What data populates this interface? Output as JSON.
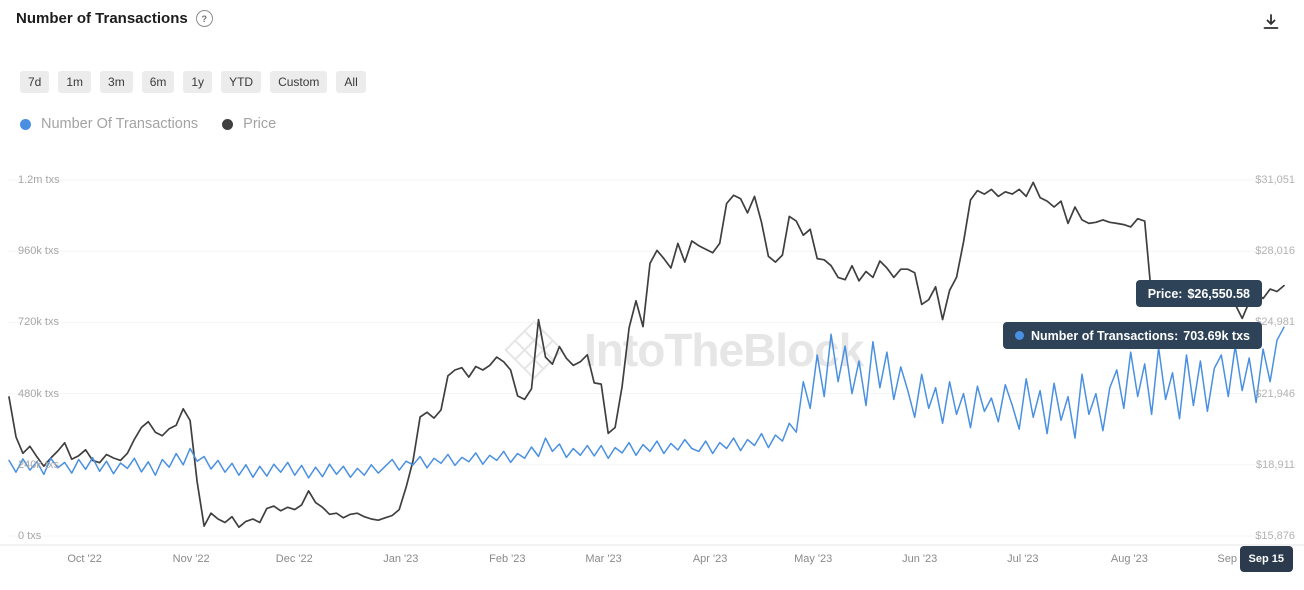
{
  "header": {
    "title": "Number of Transactions",
    "help_icon": "?",
    "download_icon": "download"
  },
  "toolbar": {
    "ranges": [
      "7d",
      "1m",
      "3m",
      "6m",
      "1y",
      "YTD",
      "Custom",
      "All"
    ]
  },
  "legend": [
    {
      "id": "transactions",
      "label": "Number Of Transactions",
      "color": "#4a90e2"
    },
    {
      "id": "price",
      "label": "Price",
      "color": "#3f3f3f"
    }
  ],
  "tooltips": {
    "price": {
      "label": "Price:",
      "value": "$26,550.58",
      "bg": "#2e4358"
    },
    "transactions": {
      "label": "Number of Transactions:",
      "value": "703.69k txs",
      "dot_color": "#4a90e2",
      "bg": "#2e4358"
    }
  },
  "axis_badge": {
    "label": "Sep 15",
    "bg": "#2b3a4d"
  },
  "watermark": {
    "text": "IntoTheBlock",
    "logo": "itb-diamond-logo"
  },
  "chart_data": {
    "type": "line",
    "title": "Number of Transactions",
    "grid": "horizontal",
    "legend_position": "top-left",
    "x_range_days": [
      0,
      371
    ],
    "x_ticks": [
      {
        "label": "Oct '22",
        "day": 22
      },
      {
        "label": "Nov '22",
        "day": 53
      },
      {
        "label": "Dec '22",
        "day": 83
      },
      {
        "label": "Jan '23",
        "day": 114
      },
      {
        "label": "Feb '23",
        "day": 145
      },
      {
        "label": "Mar '23",
        "day": 173
      },
      {
        "label": "Apr '23",
        "day": 204
      },
      {
        "label": "May '23",
        "day": 234
      },
      {
        "label": "Jun '23",
        "day": 265
      },
      {
        "label": "Jul '23",
        "day": 295
      },
      {
        "label": "Aug '23",
        "day": 326
      },
      {
        "label": "Sep '23",
        "day": 357
      }
    ],
    "left_axis": {
      "title": "transactions",
      "range_k": [
        0,
        1200
      ],
      "ticks": [
        {
          "label": "1.2m txs",
          "value_k": 1200
        },
        {
          "label": "960k txs",
          "value_k": 960
        },
        {
          "label": "720k txs",
          "value_k": 720
        },
        {
          "label": "480k txs",
          "value_k": 480
        },
        {
          "label": "240k txs",
          "value_k": 240
        },
        {
          "label": "0 txs",
          "value_k": 0
        }
      ]
    },
    "right_axis": {
      "title": "price_usd",
      "range": [
        15876,
        31051
      ],
      "ticks": [
        {
          "label": "$31,051",
          "value": 31051
        },
        {
          "label": "$28,016",
          "value": 28016
        },
        {
          "label": "$24,981",
          "value": 24981
        },
        {
          "label": "$21,946",
          "value": 21946
        },
        {
          "label": "$18,911",
          "value": 18911
        },
        {
          "label": "$15,876",
          "value": 15876
        }
      ]
    },
    "series": [
      {
        "name": "Number Of Transactions",
        "axis": "left",
        "unit": "k_txs",
        "color": "#4a90e2",
        "values": [
          255,
          215,
          260,
          222,
          250,
          208,
          262,
          230,
          248,
          212,
          258,
          225,
          264,
          218,
          252,
          210,
          246,
          228,
          262,
          216,
          250,
          205,
          258,
          232,
          278,
          240,
          295,
          252,
          268,
          226,
          255,
          215,
          245,
          205,
          240,
          198,
          235,
          202,
          242,
          215,
          248,
          205,
          238,
          196,
          232,
          200,
          242,
          208,
          235,
          198,
          228,
          205,
          240,
          212,
          235,
          258,
          222,
          252,
          240,
          268,
          230,
          262,
          245,
          275,
          238,
          265,
          250,
          280,
          242,
          272,
          255,
          285,
          248,
          278,
          262,
          300,
          268,
          330,
          285,
          310,
          265,
          295,
          272,
          305,
          270,
          305,
          262,
          298,
          280,
          315,
          272,
          308,
          285,
          320,
          278,
          312,
          290,
          325,
          295,
          285,
          320,
          278,
          315,
          295,
          330,
          288,
          325,
          305,
          345,
          298,
          340,
          320,
          380,
          350,
          520,
          430,
          610,
          470,
          680,
          520,
          640,
          480,
          590,
          440,
          655,
          500,
          620,
          460,
          570,
          490,
          400,
          545,
          430,
          500,
          380,
          520,
          410,
          480,
          365,
          505,
          420,
          465,
          385,
          510,
          440,
          360,
          530,
          400,
          490,
          345,
          515,
          390,
          470,
          330,
          545,
          410,
          480,
          355,
          500,
          560,
          430,
          620,
          470,
          580,
          410,
          635,
          460,
          550,
          395,
          610,
          440,
          590,
          420,
          565,
          610,
          470,
          640,
          490,
          600,
          450,
          630,
          520,
          660,
          703.69
        ]
      },
      {
        "name": "Price",
        "axis": "right",
        "unit": "usd",
        "color": "#3f3f3f",
        "values": [
          21800,
          20100,
          19400,
          19700,
          19250,
          18850,
          19200,
          19500,
          19850,
          19150,
          19300,
          19550,
          19100,
          19000,
          19350,
          19200,
          19100,
          19400,
          20000,
          20500,
          20750,
          20300,
          20150,
          20450,
          20600,
          21300,
          20800,
          18200,
          16300,
          16850,
          16600,
          16450,
          16700,
          16250,
          16500,
          16600,
          16450,
          17050,
          17150,
          16950,
          17100,
          17000,
          17200,
          17800,
          17300,
          17100,
          16800,
          16850,
          16650,
          16800,
          16850,
          16700,
          16600,
          16550,
          16650,
          16750,
          17000,
          17950,
          19100,
          20950,
          21150,
          20900,
          21250,
          22700,
          22950,
          23050,
          22650,
          23100,
          22950,
          23150,
          23500,
          23300,
          22950,
          21850,
          21700,
          22150,
          25100,
          23500,
          23200,
          23950,
          23450,
          23150,
          23300,
          23600,
          22400,
          22350,
          20250,
          20500,
          22250,
          24750,
          25900,
          24800,
          27500,
          28050,
          27700,
          27300,
          28350,
          27550,
          28450,
          28250,
          28100,
          27950,
          28350,
          30050,
          30400,
          30250,
          29650,
          30350,
          29250,
          27800,
          27550,
          27850,
          29500,
          29300,
          28700,
          28950,
          27700,
          27650,
          27400,
          26900,
          26800,
          27400,
          26750,
          27150,
          26900,
          27600,
          27300,
          26900,
          27250,
          27250,
          27100,
          25750,
          25950,
          26500,
          25100,
          26350,
          26900,
          28400,
          30200,
          30600,
          30450,
          30650,
          30350,
          30550,
          30450,
          30650,
          30350,
          30950,
          30300,
          30150,
          29900,
          30150,
          29200,
          29900,
          29350,
          29200,
          29250,
          29350,
          29250,
          29200,
          29150,
          29050,
          29400,
          29300,
          26050,
          26150,
          26050,
          26450,
          26000,
          26100,
          25950,
          25850,
          26100,
          25950,
          25850,
          25800,
          25750,
          25150,
          25850,
          26250,
          26000,
          26400,
          26300,
          26550.58
        ]
      }
    ],
    "last_point": {
      "x_label": "Sep 15",
      "transactions": "703.69k txs",
      "price": "$26,550.58"
    }
  }
}
